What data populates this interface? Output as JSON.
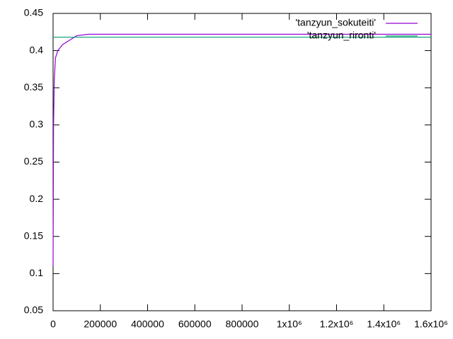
{
  "chart_data": {
    "type": "line",
    "series": [
      {
        "name": "'tanzyun_sokuteiti'",
        "color": "#9400d3",
        "x": [
          0,
          2000,
          5000,
          10000,
          20000,
          40000,
          70000,
          100000,
          150000,
          1600000
        ],
        "values": [
          0.11,
          0.3,
          0.36,
          0.39,
          0.4,
          0.408,
          0.414,
          0.42,
          0.422,
          0.422
        ]
      },
      {
        "name": "'tanzyun_rironti'",
        "color": "#009e73",
        "x": [
          0,
          1600000
        ],
        "values": [
          0.418,
          0.418
        ]
      }
    ],
    "xlim": [
      0,
      1600000
    ],
    "xticks": [
      0,
      200000,
      400000,
      600000,
      800000,
      {
        "value": 1000000,
        "label": "1x10⁶"
      },
      {
        "value": 1200000,
        "label": "1.2x10⁶"
      },
      {
        "value": 1400000,
        "label": "1.4x10⁶"
      },
      {
        "value": 1600000,
        "label": "1.6x10⁶"
      }
    ],
    "ylim": [
      0.05,
      0.45
    ],
    "yticks": [
      0.05,
      0.1,
      0.15,
      0.2,
      0.25,
      0.3,
      0.35,
      0.4,
      0.45
    ],
    "legend": "top-right"
  }
}
